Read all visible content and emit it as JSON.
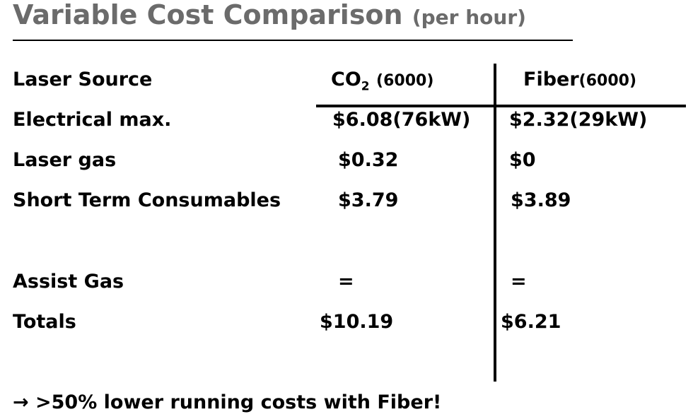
{
  "header": {
    "title": "Variable Cost Comparison",
    "subtitle": "(per hour)"
  },
  "table": {
    "columns": {
      "label": "Laser Source",
      "co2": {
        "name": "CO",
        "subscript": "2",
        "note": "(6000)"
      },
      "fiber": {
        "name": "Fiber",
        "note": "(6000)"
      }
    },
    "rows": [
      [
        "Electrical max.",
        "$6.08(76kW)",
        "$2.32(29kW)"
      ],
      [
        "Laser gas",
        "$0.32",
        "$0"
      ],
      [
        "Short Term Consumables",
        "$3.79",
        "$3.89"
      ],
      [
        "Assist Gas",
        "=",
        "="
      ],
      [
        "Totals",
        "$10.19",
        "$6.21"
      ]
    ]
  },
  "footnote": "→ >50% lower running costs with Fiber!"
}
